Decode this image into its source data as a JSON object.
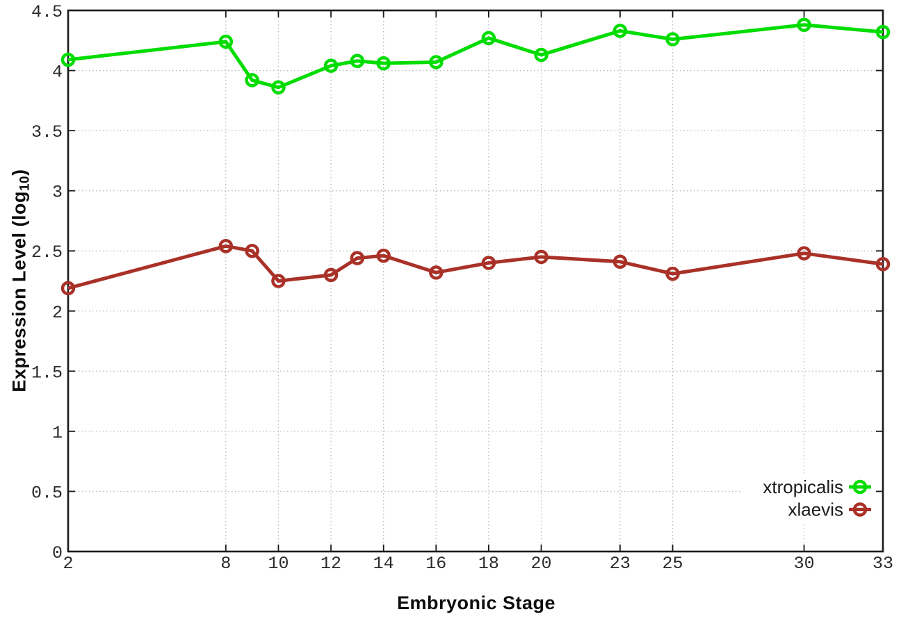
{
  "chart_data": {
    "type": "line",
    "title": "",
    "xlabel": "Embryonic Stage",
    "ylabel": {
      "pre": "Expression Level (log",
      "sub": "10",
      "post": ")"
    },
    "xlim": [
      2,
      33
    ],
    "ylim": [
      0,
      4.5
    ],
    "x_ticks": [
      2,
      8,
      10,
      12,
      14,
      16,
      18,
      20,
      23,
      25,
      30,
      33
    ],
    "y_ticks": [
      0,
      0.5,
      1,
      1.5,
      2,
      2.5,
      3,
      3.5,
      4,
      4.5
    ],
    "grid": true,
    "legend_position": "bottom-right",
    "x": [
      2,
      8,
      9,
      10,
      12,
      13,
      14,
      16,
      18,
      20,
      23,
      25,
      30,
      33
    ],
    "series": [
      {
        "name": "xtropicalis",
        "color": "#00dc00",
        "values": [
          4.09,
          4.24,
          3.92,
          3.86,
          4.04,
          4.08,
          4.06,
          4.07,
          4.27,
          4.13,
          4.33,
          4.26,
          4.38,
          4.32
        ]
      },
      {
        "name": "xlaevis",
        "color": "#a93128",
        "values": [
          2.19,
          2.54,
          2.5,
          2.25,
          2.3,
          2.44,
          2.46,
          2.32,
          2.4,
          2.45,
          2.41,
          2.31,
          2.48,
          2.39
        ]
      }
    ],
    "axis_color": "#1a1a1a",
    "grid_color": "#b8b8b8",
    "tick_label_color": "#2b2b2b",
    "legend_text_color": "#1a1a1a"
  }
}
